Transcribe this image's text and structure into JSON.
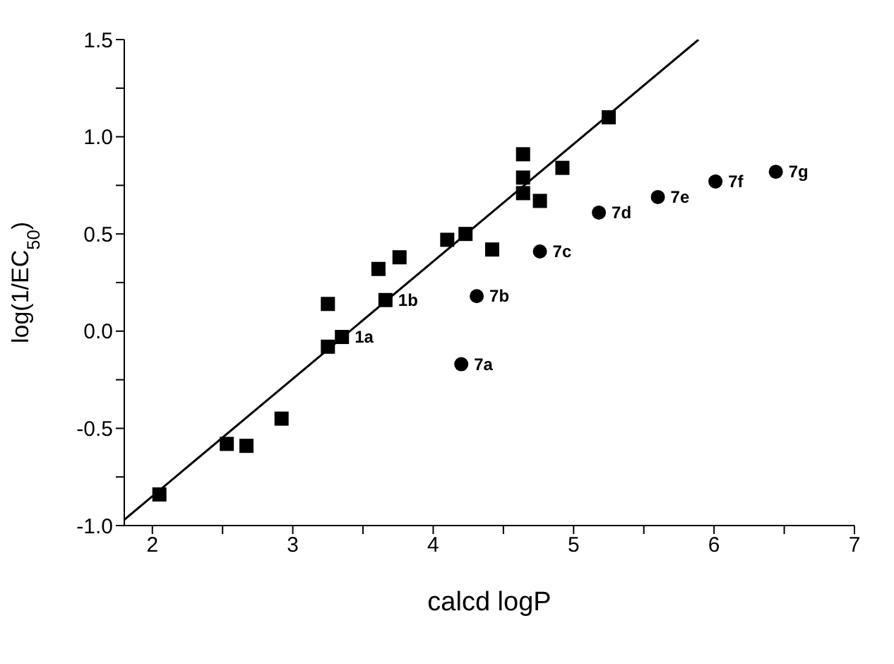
{
  "chart_data": {
    "type": "scatter",
    "xlabel": "calcd logP",
    "ylabel": "log(1/EC$_{50}$)",
    "xlim": [
      1.8,
      7
    ],
    "xticks": [
      2,
      {
        "value": 2.5,
        "label": null
      },
      3,
      {
        "value": 3.5,
        "label": null
      },
      4,
      {
        "value": 4.5,
        "label": null
      },
      5,
      {
        "value": 5.5,
        "label": null
      },
      6,
      {
        "value": 6.5,
        "label": null
      },
      7
    ],
    "ylim": [
      -1.0,
      1.5
    ],
    "yticks": [
      {
        "value": -1.0,
        "label": "-1.0"
      },
      {
        "value": -0.75,
        "label": null
      },
      {
        "value": -0.5,
        "label": "-0.5"
      },
      {
        "value": -0.25,
        "label": null
      },
      {
        "value": 0.0,
        "label": "0.0"
      },
      {
        "value": 0.25,
        "label": null
      },
      {
        "value": 0.5,
        "label": "0.5"
      },
      {
        "value": 0.75,
        "label": null
      },
      {
        "value": 1.0,
        "label": "1.0"
      },
      {
        "value": 1.25,
        "label": null
      },
      {
        "value": 1.5,
        "label": "1.5"
      }
    ],
    "grid": false,
    "series": [
      {
        "marker": "square",
        "color": "#000000",
        "x": [
          2.05,
          2.53,
          2.67,
          2.92,
          3.25,
          3.35,
          3.25,
          3.66,
          3.61,
          3.76,
          4.1,
          4.23,
          4.42,
          4.64,
          4.64,
          4.64,
          4.76,
          4.92,
          5.25
        ],
        "values": [
          -0.84,
          -0.58,
          -0.59,
          -0.45,
          -0.08,
          -0.03,
          0.14,
          0.16,
          0.32,
          0.38,
          0.47,
          0.5,
          0.42,
          0.91,
          0.79,
          0.71,
          0.67,
          0.84,
          1.1
        ]
      },
      {
        "marker": "circle",
        "color": "#000000",
        "x": [
          4.2,
          4.31,
          4.76,
          5.18,
          5.6,
          6.01,
          6.44
        ],
        "values": [
          -0.17,
          0.18,
          0.41,
          0.61,
          0.69,
          0.77,
          0.82
        ]
      },
      {
        "type": "line",
        "marker": "none",
        "color": "#000000",
        "x": [
          1.8,
          5.89
        ],
        "values": [
          -0.97,
          1.5
        ]
      }
    ],
    "annotations": [
      {
        "text": "1a",
        "x": 3.35,
        "y": -0.03
      },
      {
        "text": "1b",
        "x": 3.66,
        "y": 0.16
      },
      {
        "text": "7a",
        "x": 4.2,
        "y": -0.17
      },
      {
        "text": "7b",
        "x": 4.31,
        "y": 0.18
      },
      {
        "text": "7c",
        "x": 4.76,
        "y": 0.41
      },
      {
        "text": "7d",
        "x": 5.18,
        "y": 0.61
      },
      {
        "text": "7e",
        "x": 5.6,
        "y": 0.69
      },
      {
        "text": "7f",
        "x": 6.01,
        "y": 0.77
      },
      {
        "text": "7g",
        "x": 6.44,
        "y": 0.82
      }
    ]
  }
}
